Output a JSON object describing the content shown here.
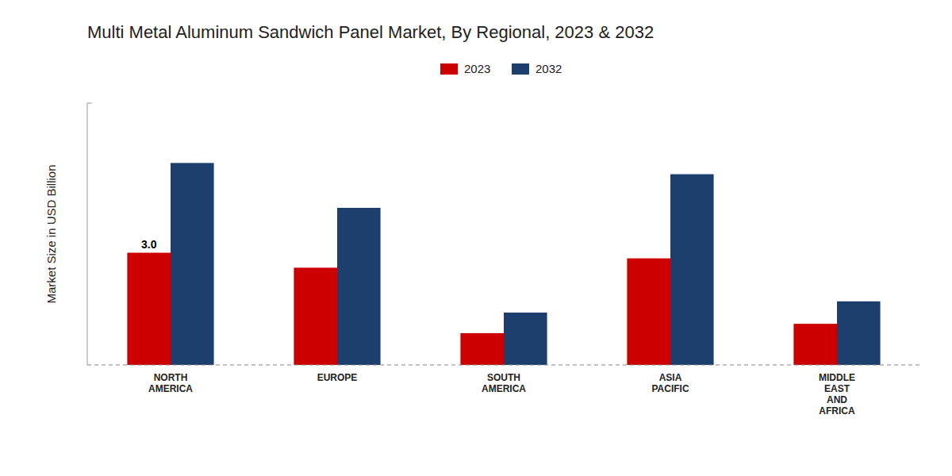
{
  "chart_data": {
    "type": "bar",
    "title": "Multi Metal Aluminum Sandwich Panel Market, By Regional, 2023 & 2032",
    "y_label": "Market Size in USD Billion",
    "categories": [
      "NORTH\nAMERICA",
      "EUROPE",
      "SOUTH\nAMERICA",
      "ASIA\nPACIFIC",
      "MIDDLE\nEAST\nAND\nAFRICA"
    ],
    "series": [
      {
        "name": "2023",
        "color": "#cc0000",
        "values": [
          3.0,
          2.6,
          0.85,
          2.85,
          1.1
        ]
      },
      {
        "name": "2032",
        "color": "#1c3f6e",
        "values": [
          5.4,
          4.2,
          1.4,
          5.1,
          1.7
        ]
      }
    ],
    "ylim": [
      0,
      7.0
    ],
    "tick_labels": "x",
    "legend": "top",
    "annotations": [
      {
        "text": "3.0",
        "x": "NORTH\nAMERICA",
        "y": 3.0
      }
    ]
  }
}
